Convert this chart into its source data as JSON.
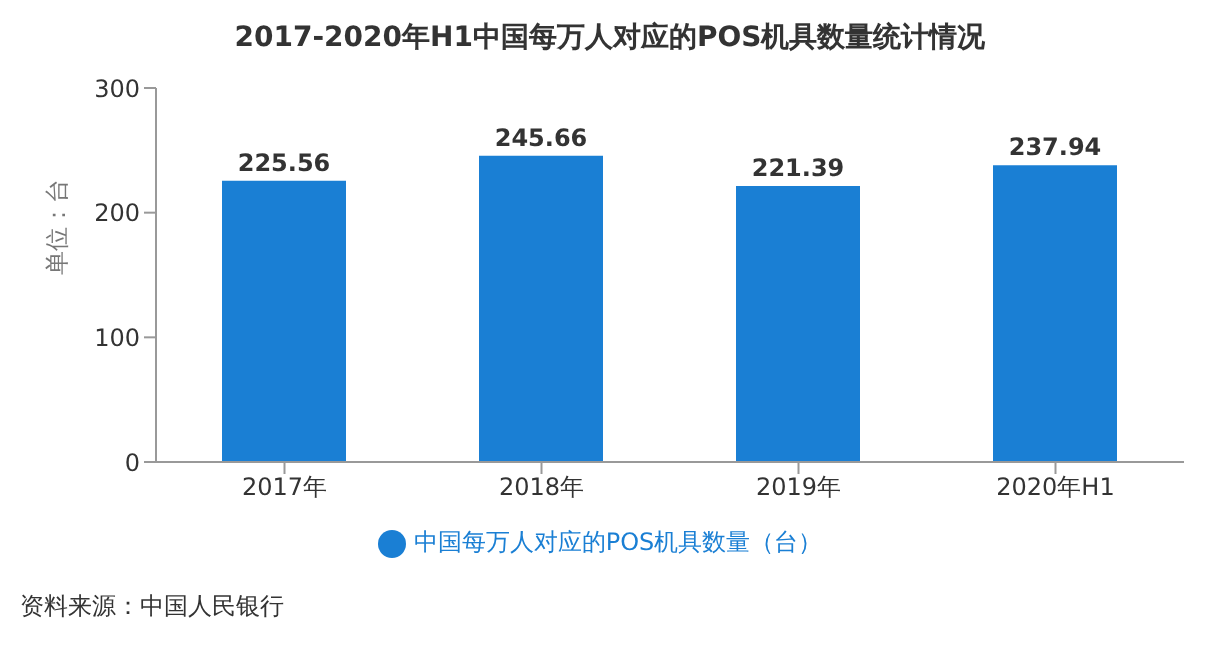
{
  "chart_data": {
    "type": "bar",
    "title": "2017-2020年H1中国每万人对应的POS机具数量统计情况",
    "ylabel": "单位：台",
    "categories": [
      "2017年",
      "2018年",
      "2019年",
      "2020年H1"
    ],
    "series": [
      {
        "name": "中国每万人对应的POS机具数量（台）",
        "color": "#1a7fd4",
        "values": [
          225.56,
          245.66,
          221.39,
          237.94
        ]
      }
    ],
    "ylim": [
      0,
      300
    ],
    "yticks": [
      0,
      100,
      200,
      300
    ],
    "data_labels": true,
    "legend": "bottom",
    "grid": false,
    "annotations": [
      "资料来源：中国人民银行"
    ]
  }
}
